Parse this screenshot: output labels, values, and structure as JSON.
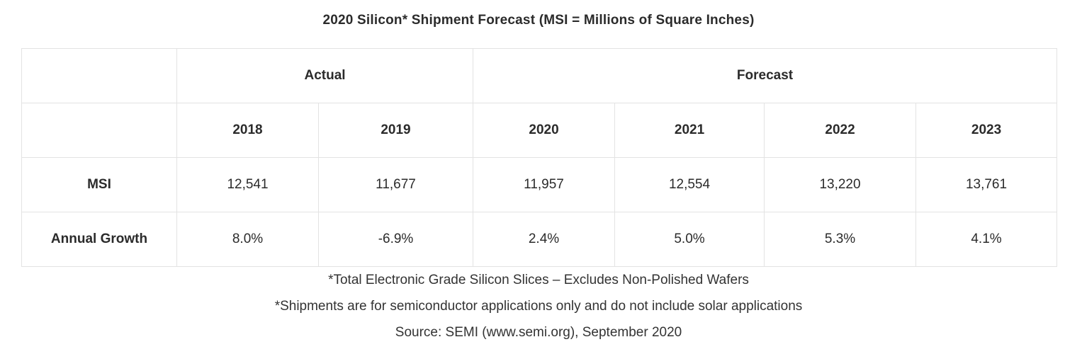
{
  "title": "2020 Silicon* Shipment Forecast (MSI = Millions of Square Inches)",
  "header": {
    "actual_label": "Actual",
    "forecast_label": "Forecast"
  },
  "years": [
    "2018",
    "2019",
    "2020",
    "2021",
    "2022",
    "2023"
  ],
  "rows": [
    {
      "label": "MSI",
      "cells": [
        "12,541",
        "11,677",
        "11,957",
        "12,554",
        "13,220",
        "13,761"
      ]
    },
    {
      "label": "Annual Growth",
      "cells": [
        "8.0%",
        "-6.9%",
        "2.4%",
        "5.0%",
        "5.3%",
        "4.1%"
      ]
    }
  ],
  "notes": [
    "*Total Electronic Grade Silicon Slices – Excludes Non-Polished Wafers",
    "*Shipments are for semiconductor applications only and do not include solar applications",
    "Source: SEMI (www.semi.org), September 2020"
  ],
  "chart_data": {
    "type": "table",
    "title": "2020 Silicon* Shipment Forecast (MSI = Millions of Square Inches)",
    "column_groups": [
      {
        "name": "Actual",
        "columns": [
          "2018",
          "2019"
        ]
      },
      {
        "name": "Forecast",
        "columns": [
          "2020",
          "2021",
          "2022",
          "2023"
        ]
      }
    ],
    "columns": [
      "2018",
      "2019",
      "2020",
      "2021",
      "2022",
      "2023"
    ],
    "series": [
      {
        "name": "MSI",
        "values": [
          12541,
          11677,
          11957,
          12554,
          13220,
          13761
        ]
      },
      {
        "name": "Annual Growth",
        "values": [
          8.0,
          -6.9,
          2.4,
          5.0,
          5.3,
          4.1
        ]
      }
    ]
  }
}
